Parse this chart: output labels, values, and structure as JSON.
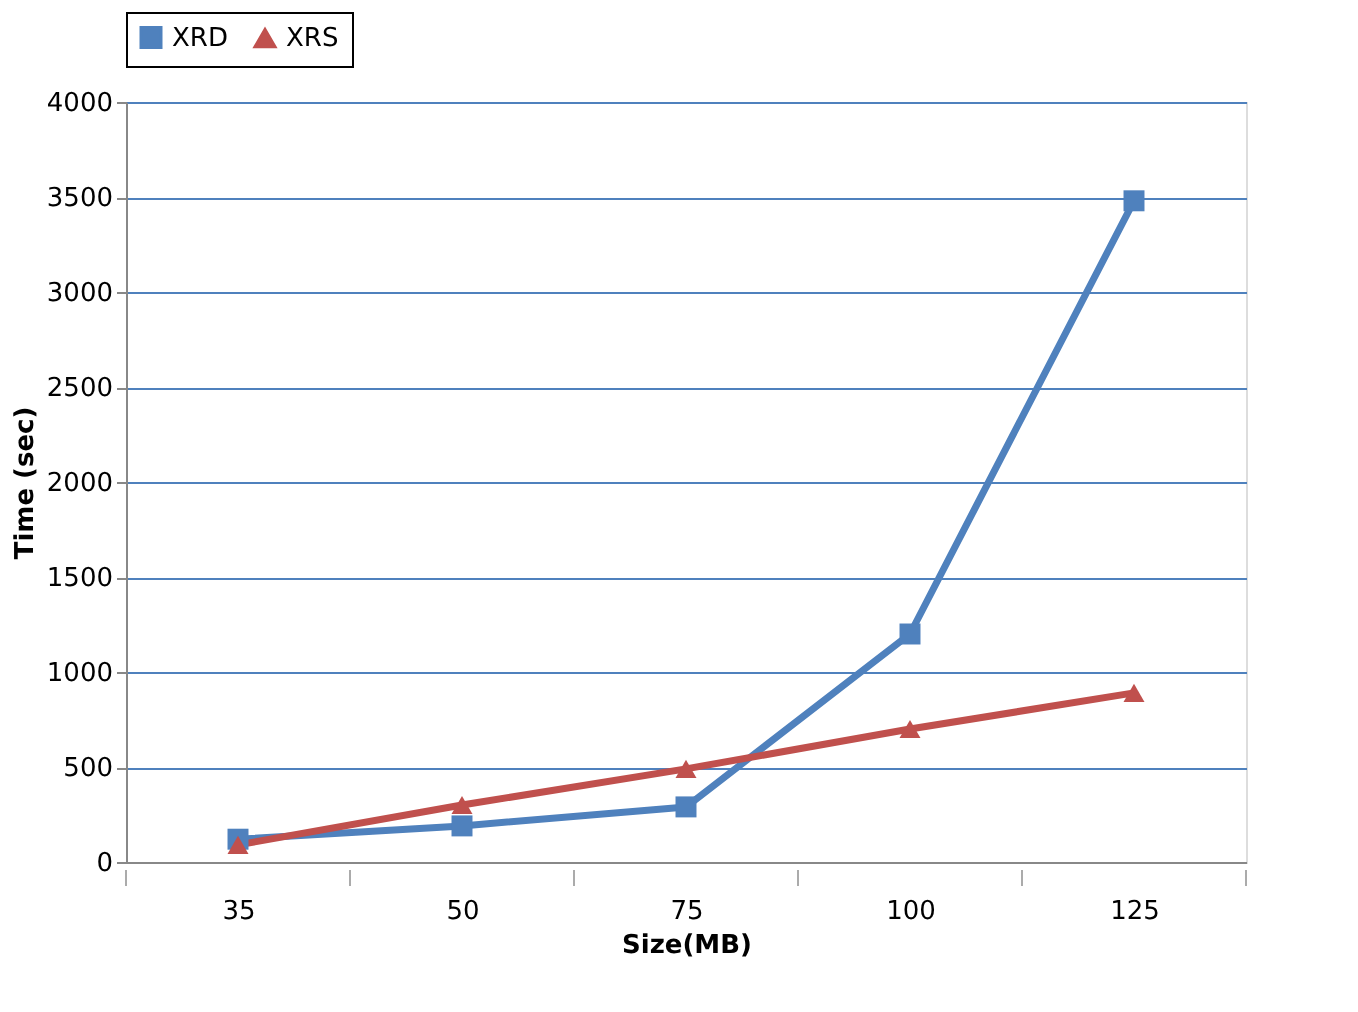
{
  "chart_data": {
    "type": "line",
    "xlabel": "Size(MB)",
    "ylabel": "Time (sec)",
    "categories": [
      "35",
      "50",
      "75",
      "100",
      "125"
    ],
    "series": [
      {
        "name": "XRD",
        "color": "#4f81bd",
        "marker": "square",
        "values": [
          120,
          190,
          290,
          1200,
          3480
        ]
      },
      {
        "name": "XRS",
        "color": "#c0504d",
        "marker": "triangle",
        "values": [
          90,
          300,
          490,
          700,
          890
        ]
      }
    ],
    "ylim": [
      0,
      4000
    ],
    "yticks": [
      0,
      500,
      1000,
      1500,
      2000,
      2500,
      3000,
      3500,
      4000
    ],
    "grid": "y",
    "legend": "top",
    "line_style": "solid"
  }
}
